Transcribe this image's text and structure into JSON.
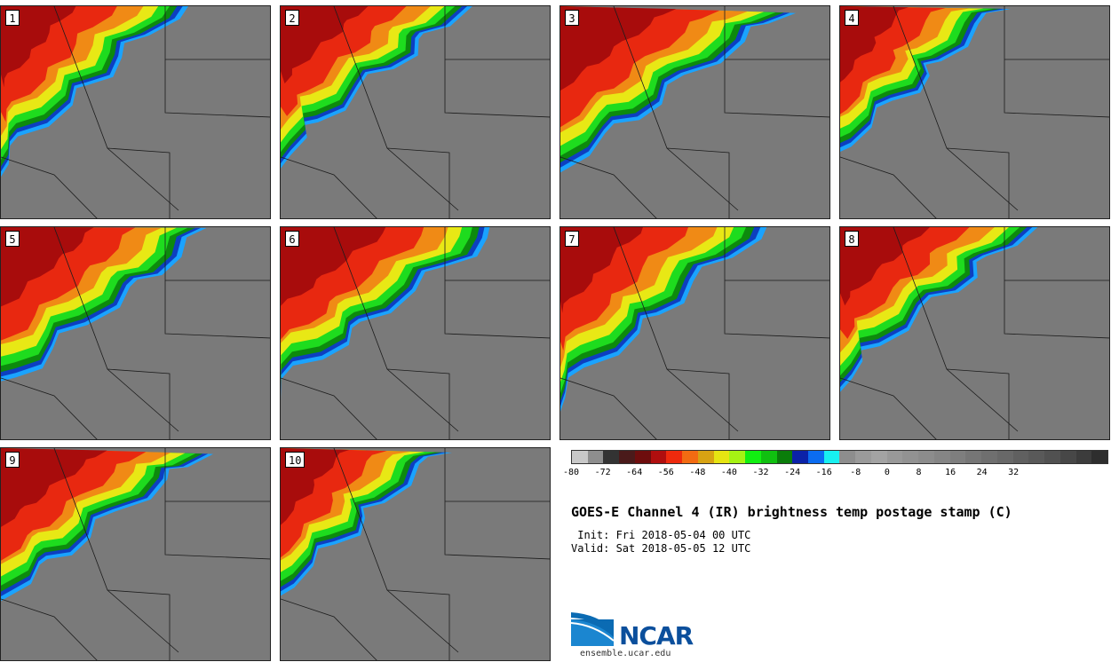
{
  "panels": [
    {
      "label": "1"
    },
    {
      "label": "2"
    },
    {
      "label": "3"
    },
    {
      "label": "4"
    },
    {
      "label": "5"
    },
    {
      "label": "6"
    },
    {
      "label": "7"
    },
    {
      "label": "8"
    },
    {
      "label": "9"
    },
    {
      "label": "10"
    }
  ],
  "colorbar": {
    "colors": [
      "#c8c8c8",
      "#8e8e8e",
      "#333333",
      "#4a1a1a",
      "#6e0d0d",
      "#b00e0e",
      "#ee2a0d",
      "#f26b12",
      "#d8a313",
      "#e6e412",
      "#a6f214",
      "#11ef11",
      "#10c010",
      "#0a7d0a",
      "#0b22a8",
      "#0b6cf0",
      "#18f0f0",
      "#8d8d8d",
      "#9a9a9a",
      "#a3a3a3",
      "#999999",
      "#929292",
      "#8c8c8c",
      "#858585",
      "#7e7e7e",
      "#767676",
      "#6f6f6f",
      "#686868",
      "#606060",
      "#595959",
      "#515151",
      "#474747",
      "#3c3c3c",
      "#2e2e2e"
    ],
    "tick_labels": [
      "-80",
      "-72",
      "-64",
      "-56",
      "-48",
      "-40",
      "-32",
      "-24",
      "-16",
      "-8",
      "0",
      "8",
      "16",
      "24",
      "32"
    ]
  },
  "title": "GOES-E Channel 4 (IR) brightness temp postage stamp (C)",
  "init": " Init: Fri 2018-05-04 00 UTC",
  "valid": "Valid: Sat 2018-05-05 12 UTC",
  "logo": {
    "name": "NCAR",
    "url": "ensemble.ucar.edu"
  }
}
